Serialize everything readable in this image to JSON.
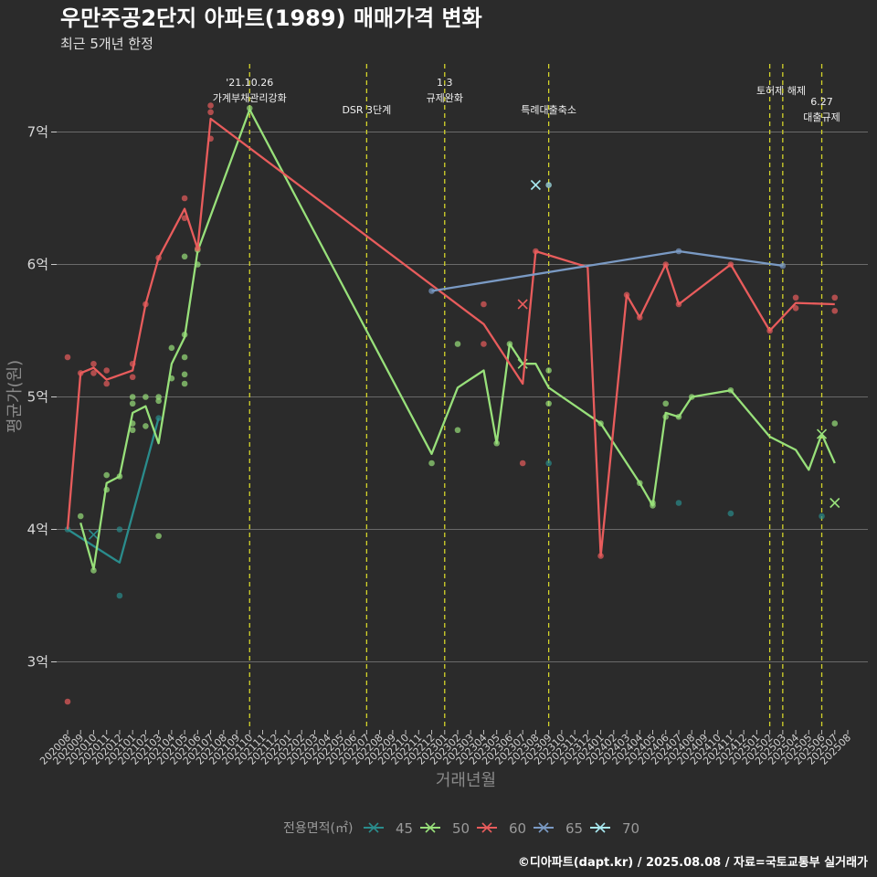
{
  "chart_data": {
    "type": "line",
    "title": "우만주공2단지 아파트(1989) 매매가격 변화",
    "subtitle": "최근 5개년 한정",
    "xlabel": "거래년월",
    "ylabel": "평균가(원)",
    "caption": "©디아파트(dapt.kr) / 2025.08.08 / 자료=국토교통부 실거래가",
    "ylim": [
      2.5,
      7.5
    ],
    "yticks": [
      {
        "value": 3,
        "label": "3억"
      },
      {
        "value": 4,
        "label": "4억"
      },
      {
        "value": 5,
        "label": "5억"
      },
      {
        "value": 6,
        "label": "6억"
      },
      {
        "value": 7,
        "label": "7억"
      }
    ],
    "x_months": [
      "202008",
      "202009",
      "202010",
      "202011",
      "202012",
      "202101",
      "202102",
      "202103",
      "202104",
      "202105",
      "202106",
      "202107",
      "202108",
      "202109",
      "202110",
      "202111",
      "202112",
      "202201",
      "202202",
      "202203",
      "202204",
      "202205",
      "202206",
      "202207",
      "202208",
      "202209",
      "202210",
      "202211",
      "202212",
      "202301",
      "202302",
      "202303",
      "202304",
      "202305",
      "202306",
      "202307",
      "202308",
      "202309",
      "202310",
      "202311",
      "202312",
      "202401",
      "202402",
      "202403",
      "202404",
      "202405",
      "202406",
      "202407",
      "202408",
      "202409",
      "202410",
      "202411",
      "202412",
      "202501",
      "202502",
      "202503",
      "202504",
      "202505",
      "202506",
      "202507",
      "202508"
    ],
    "grid": true,
    "legend": {
      "title": "전용면적(㎡)",
      "position": "bottom",
      "items": [
        {
          "name": "45",
          "color": "#2a8c8c"
        },
        {
          "name": "50",
          "color": "#98e07a"
        },
        {
          "name": "60",
          "color": "#e85c5c"
        },
        {
          "name": "65",
          "color": "#7a9ac4"
        },
        {
          "name": "70",
          "color": "#a8e8f0"
        }
      ]
    },
    "events": [
      {
        "month": "202110",
        "label": [
          "'21.10.26",
          "가계부채관리강화"
        ],
        "color": "#d4d42a"
      },
      {
        "month": "202207",
        "label": [
          "DSR 3단계"
        ],
        "color": "#d4d42a"
      },
      {
        "month": "202301",
        "label": [
          "1.3",
          "규제완화"
        ],
        "color": "#d4d42a"
      },
      {
        "month": "202309",
        "label": [
          "특례대출축소"
        ],
        "color": "#d4d42a"
      },
      {
        "month": "202502",
        "label": [
          "토허제 해제"
        ],
        "color": "#d4d42a"
      },
      {
        "month": "202503",
        "label": [
          ""
        ],
        "color": "#d4d42a"
      },
      {
        "month": "202506",
        "label": [
          "6.27",
          "대출규제"
        ],
        "color": "#d4d42a"
      }
    ],
    "series": [
      {
        "name": "45",
        "color": "#2a8c8c",
        "line": [
          [
            "202008",
            4.0
          ],
          [
            "202012",
            3.75
          ],
          [
            "202103",
            4.84
          ]
        ],
        "points": [
          [
            "202008",
            4.0
          ],
          [
            "202012",
            4.0
          ],
          [
            "202012",
            3.5
          ],
          [
            "202103",
            4.84
          ],
          [
            "202309",
            4.5
          ],
          [
            "202407",
            4.2
          ],
          [
            "202411",
            4.12
          ],
          [
            "202506",
            4.1
          ]
        ],
        "crosses": [
          [
            "202010",
            3.96
          ]
        ]
      },
      {
        "name": "50",
        "color": "#98e07a",
        "line": [
          [
            "202009",
            4.05
          ],
          [
            "202010",
            3.7
          ],
          [
            "202011",
            4.35
          ],
          [
            "202012",
            4.4
          ],
          [
            "202101",
            4.88
          ],
          [
            "202102",
            4.93
          ],
          [
            "202103",
            4.65
          ],
          [
            "202104",
            5.25
          ],
          [
            "202105",
            5.45
          ],
          [
            "202106",
            6.1
          ],
          [
            "202110",
            7.17
          ],
          [
            "202212",
            4.57
          ],
          [
            "202302",
            5.07
          ],
          [
            "202304",
            5.2
          ],
          [
            "202305",
            4.65
          ],
          [
            "202306",
            5.4
          ],
          [
            "202307",
            5.25
          ],
          [
            "202308",
            5.25
          ],
          [
            "202309",
            5.07
          ],
          [
            "202401",
            4.8
          ],
          [
            "202404",
            4.35
          ],
          [
            "202405",
            4.18
          ],
          [
            "202406",
            4.88
          ],
          [
            "202407",
            4.85
          ],
          [
            "202408",
            5.0
          ],
          [
            "202411",
            5.05
          ],
          [
            "202502",
            4.7
          ],
          [
            "202504",
            4.6
          ],
          [
            "202505",
            4.45
          ],
          [
            "202506",
            4.72
          ],
          [
            "202507",
            4.5
          ]
        ],
        "points": [
          [
            "202009",
            4.1
          ],
          [
            "202010",
            3.69
          ],
          [
            "202011",
            4.41
          ],
          [
            "202011",
            4.3
          ],
          [
            "202012",
            4.4
          ],
          [
            "202101",
            5.0
          ],
          [
            "202101",
            4.95
          ],
          [
            "202101",
            4.8
          ],
          [
            "202101",
            4.75
          ],
          [
            "202102",
            5.0
          ],
          [
            "202102",
            4.78
          ],
          [
            "202103",
            5.0
          ],
          [
            "202103",
            4.97
          ],
          [
            "202103",
            3.95
          ],
          [
            "202104",
            5.37
          ],
          [
            "202104",
            5.14
          ],
          [
            "202105",
            6.06
          ],
          [
            "202105",
            5.47
          ],
          [
            "202105",
            5.3
          ],
          [
            "202105",
            5.17
          ],
          [
            "202105",
            5.1
          ],
          [
            "202106",
            6.11
          ],
          [
            "202106",
            6.0
          ],
          [
            "202110",
            7.18
          ],
          [
            "202212",
            4.5
          ],
          [
            "202302",
            5.4
          ],
          [
            "202302",
            4.75
          ],
          [
            "202305",
            4.65
          ],
          [
            "202306",
            5.4
          ],
          [
            "202309",
            5.2
          ],
          [
            "202309",
            4.95
          ],
          [
            "202401",
            4.8
          ],
          [
            "202404",
            4.35
          ],
          [
            "202405",
            4.2
          ],
          [
            "202405",
            4.18
          ],
          [
            "202406",
            4.95
          ],
          [
            "202406",
            4.85
          ],
          [
            "202407",
            4.85
          ],
          [
            "202408",
            5.0
          ],
          [
            "202411",
            5.05
          ],
          [
            "202507",
            4.8
          ]
        ],
        "crosses": [
          [
            "202307",
            5.25
          ],
          [
            "202506",
            4.72
          ],
          [
            "202507",
            4.2
          ]
        ]
      },
      {
        "name": "60",
        "color": "#e85c5c",
        "line": [
          [
            "202008",
            4.0
          ],
          [
            "202009",
            5.18
          ],
          [
            "202010",
            5.22
          ],
          [
            "202011",
            5.13
          ],
          [
            "202101",
            5.2
          ],
          [
            "202102",
            5.7
          ],
          [
            "202103",
            6.05
          ],
          [
            "202105",
            6.42
          ],
          [
            "202106",
            6.12
          ],
          [
            "202107",
            7.1
          ],
          [
            "202304",
            5.55
          ],
          [
            "202307",
            5.1
          ],
          [
            "202308",
            6.1
          ],
          [
            "202312",
            5.98
          ],
          [
            "202401",
            3.8
          ],
          [
            "202403",
            5.77
          ],
          [
            "202404",
            5.6
          ],
          [
            "202406",
            6.0
          ],
          [
            "202407",
            5.7
          ],
          [
            "202411",
            6.0
          ],
          [
            "202502",
            5.5
          ],
          [
            "202504",
            5.71
          ],
          [
            "202507",
            5.7
          ]
        ],
        "points": [
          [
            "202008",
            5.3
          ],
          [
            "202008",
            2.7
          ],
          [
            "202009",
            5.18
          ],
          [
            "202010",
            5.25
          ],
          [
            "202010",
            5.18
          ],
          [
            "202011",
            5.2
          ],
          [
            "202011",
            5.1
          ],
          [
            "202101",
            5.25
          ],
          [
            "202101",
            5.15
          ],
          [
            "202102",
            5.7
          ],
          [
            "202103",
            6.05
          ],
          [
            "202105",
            6.5
          ],
          [
            "202105",
            6.35
          ],
          [
            "202106",
            6.12
          ],
          [
            "202107",
            7.2
          ],
          [
            "202107",
            7.15
          ],
          [
            "202107",
            6.95
          ],
          [
            "202304",
            5.7
          ],
          [
            "202304",
            5.4
          ],
          [
            "202307",
            4.5
          ],
          [
            "202308",
            6.1
          ],
          [
            "202401",
            3.8
          ],
          [
            "202403",
            5.77
          ],
          [
            "202404",
            5.6
          ],
          [
            "202406",
            6.0
          ],
          [
            "202407",
            5.7
          ],
          [
            "202411",
            6.0
          ],
          [
            "202502",
            5.5
          ],
          [
            "202504",
            5.75
          ],
          [
            "202504",
            5.67
          ],
          [
            "202507",
            5.75
          ],
          [
            "202507",
            5.65
          ]
        ],
        "crosses": [
          [
            "202307",
            5.7
          ]
        ]
      },
      {
        "name": "65",
        "color": "#7a9ac4",
        "line": [
          [
            "202212",
            5.8
          ],
          [
            "202407",
            6.1
          ],
          [
            "202503",
            5.99
          ]
        ],
        "points": [
          [
            "202212",
            5.8
          ],
          [
            "202407",
            6.1
          ],
          [
            "202503",
            5.99
          ]
        ],
        "crosses": []
      },
      {
        "name": "70",
        "color": "#a8e8f0",
        "line": [],
        "points": [
          [
            "202309",
            6.6
          ]
        ],
        "crosses": [
          [
            "202308",
            6.6
          ]
        ]
      }
    ]
  }
}
